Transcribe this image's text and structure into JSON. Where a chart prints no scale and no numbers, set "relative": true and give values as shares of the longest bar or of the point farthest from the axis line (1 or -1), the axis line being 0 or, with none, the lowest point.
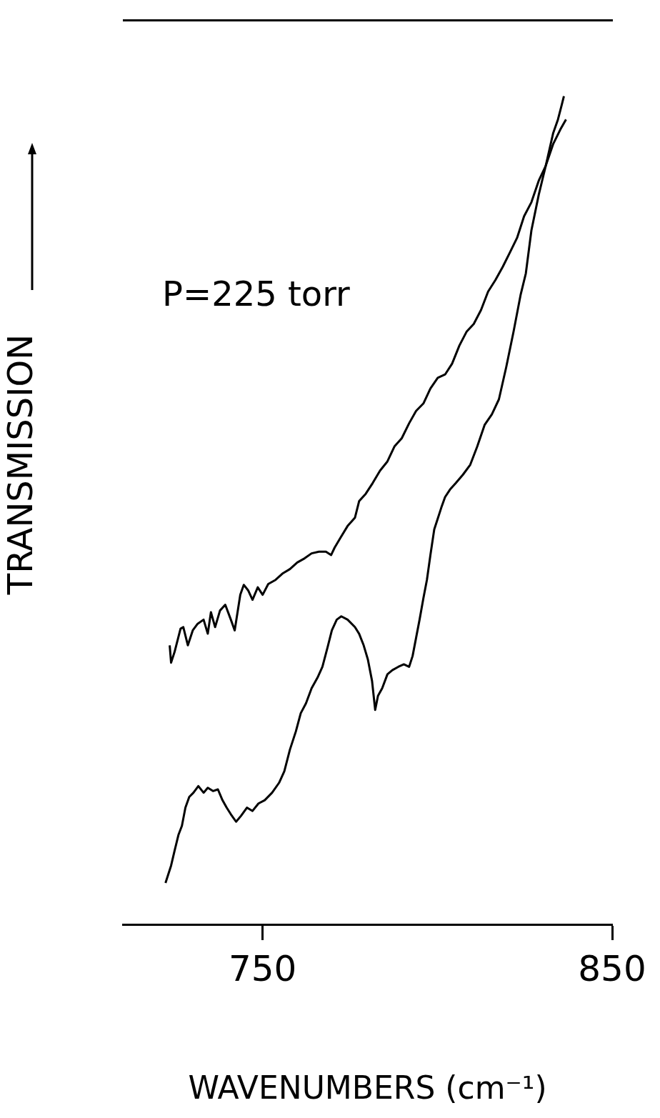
{
  "chart_data": {
    "type": "line",
    "xlabel": "WAVENUMBERS (cm⁻¹)",
    "ylabel": "TRANSMISSION",
    "relative": true,
    "legend": false,
    "grid": false,
    "xlim": [
      710,
      850
    ],
    "xticks": [
      750,
      850
    ],
    "tick_labels": "x",
    "annotations": [
      "P=225 torr"
    ],
    "series": [
      {
        "color": "#000000",
        "x": [
          723.4,
          723.8,
          724.8,
          726.5,
          727.3,
          728.6,
          730.0,
          731.4,
          733.1,
          734.3,
          735.2,
          736.4,
          737.8,
          739.3,
          740.9,
          742.0,
          743.6,
          744.6,
          745.9,
          747.1,
          748.6,
          750.0,
          751.6,
          753.7,
          755.8,
          757.8,
          759.9,
          762.0,
          764.0,
          766.1,
          768.1,
          769.6,
          770.6,
          772.3,
          774.3,
          776.4,
          777.6,
          779.5,
          781.5,
          783.6,
          785.7,
          787.7,
          789.8,
          791.9,
          793.9,
          796.0,
          798.0,
          800.1,
          802.2,
          804.2,
          806.3,
          808.4,
          810.4,
          812.5,
          814.5,
          816.6,
          818.7,
          820.7,
          822.8,
          824.8,
          826.9,
          829.0,
          831.0,
          833.1,
          834.5,
          835.6,
          836.2
        ],
        "values": [
          0.337,
          0.316,
          0.329,
          0.357,
          0.359,
          0.337,
          0.355,
          0.363,
          0.368,
          0.351,
          0.377,
          0.359,
          0.379,
          0.386,
          0.368,
          0.355,
          0.398,
          0.41,
          0.403,
          0.392,
          0.407,
          0.398,
          0.411,
          0.416,
          0.424,
          0.429,
          0.437,
          0.442,
          0.448,
          0.45,
          0.45,
          0.446,
          0.455,
          0.467,
          0.481,
          0.491,
          0.511,
          0.52,
          0.533,
          0.548,
          0.559,
          0.577,
          0.587,
          0.605,
          0.62,
          0.629,
          0.647,
          0.66,
          0.664,
          0.677,
          0.699,
          0.716,
          0.725,
          0.742,
          0.764,
          0.778,
          0.794,
          0.811,
          0.829,
          0.855,
          0.872,
          0.898,
          0.916,
          0.955,
          0.972,
          0.99,
          1
        ]
      },
      {
        "color": "#000000",
        "x": [
          722.2,
          723.8,
          724.8,
          725.9,
          726.9,
          727.9,
          729.0,
          730.2,
          731.6,
          733.1,
          734.3,
          735.8,
          737.2,
          738.5,
          739.7,
          740.9,
          742.4,
          743.8,
          745.5,
          747.1,
          748.8,
          750.6,
          752.7,
          754.7,
          756.2,
          757.8,
          759.5,
          760.9,
          762.4,
          764.0,
          765.7,
          767.1,
          768.6,
          769.8,
          771.2,
          772.5,
          774.3,
          776.4,
          777.6,
          778.9,
          780.1,
          781.3,
          782.2,
          783.0,
          784.2,
          785.7,
          787.1,
          788.8,
          790.4,
          791.9,
          792.9,
          793.9,
          794.9,
          796.0,
          797.0,
          798.0,
          799.1,
          800.1,
          801.1,
          802.2,
          803.6,
          805.3,
          807.3,
          809.4,
          811.4,
          813.5,
          815.6,
          817.6,
          819.7,
          821.8,
          823.8,
          825.3,
          826.9,
          829.0,
          831.0,
          833.1,
          835.2,
          836.8
        ],
        "values": [
          0.05,
          0.071,
          0.089,
          0.108,
          0.119,
          0.141,
          0.154,
          0.159,
          0.167,
          0.159,
          0.165,
          0.161,
          0.163,
          0.15,
          0.141,
          0.133,
          0.124,
          0.131,
          0.141,
          0.137,
          0.146,
          0.15,
          0.159,
          0.171,
          0.185,
          0.211,
          0.233,
          0.255,
          0.267,
          0.285,
          0.298,
          0.311,
          0.335,
          0.355,
          0.368,
          0.372,
          0.368,
          0.359,
          0.351,
          0.337,
          0.32,
          0.294,
          0.259,
          0.276,
          0.285,
          0.302,
          0.307,
          0.311,
          0.314,
          0.311,
          0.324,
          0.346,
          0.368,
          0.394,
          0.416,
          0.446,
          0.477,
          0.49,
          0.503,
          0.516,
          0.525,
          0.533,
          0.543,
          0.555,
          0.577,
          0.603,
          0.616,
          0.634,
          0.673,
          0.716,
          0.76,
          0.786,
          0.838,
          0.881,
          0.916,
          0.942,
          0.96,
          0.972
        ]
      }
    ]
  }
}
